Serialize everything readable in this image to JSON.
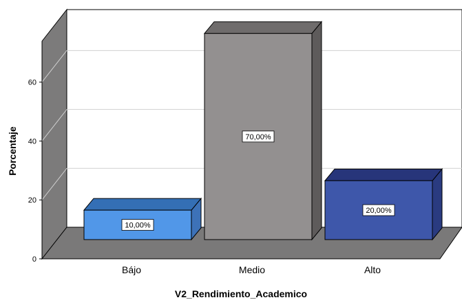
{
  "chart_data": {
    "type": "bar",
    "title": "",
    "xlabel": "V2_Rendimiento_Academico",
    "ylabel": "Porcentaje",
    "ylim": [
      0,
      80
    ],
    "yticks": [
      0,
      20,
      40,
      60
    ],
    "grid": true,
    "categories": [
      "Bájo",
      "Medio",
      "Alto"
    ],
    "values": [
      10,
      70,
      20
    ],
    "data_labels": [
      "10,00%",
      "70,00%",
      "20,00%"
    ],
    "colors": {
      "bars": [
        "#5197e8",
        "#939090",
        "#3e57aa"
      ],
      "bar_tops": [
        "#346fb5",
        "#6f6c6c",
        "#27357a"
      ],
      "bar_sides": [
        "#3d72b8",
        "#5e5b5b",
        "#2a3b80"
      ],
      "back_wall": "#ffffff",
      "side_wall": "#7c7b7b",
      "floor": "#7a7979",
      "gridline": "#d0d0d0"
    }
  }
}
